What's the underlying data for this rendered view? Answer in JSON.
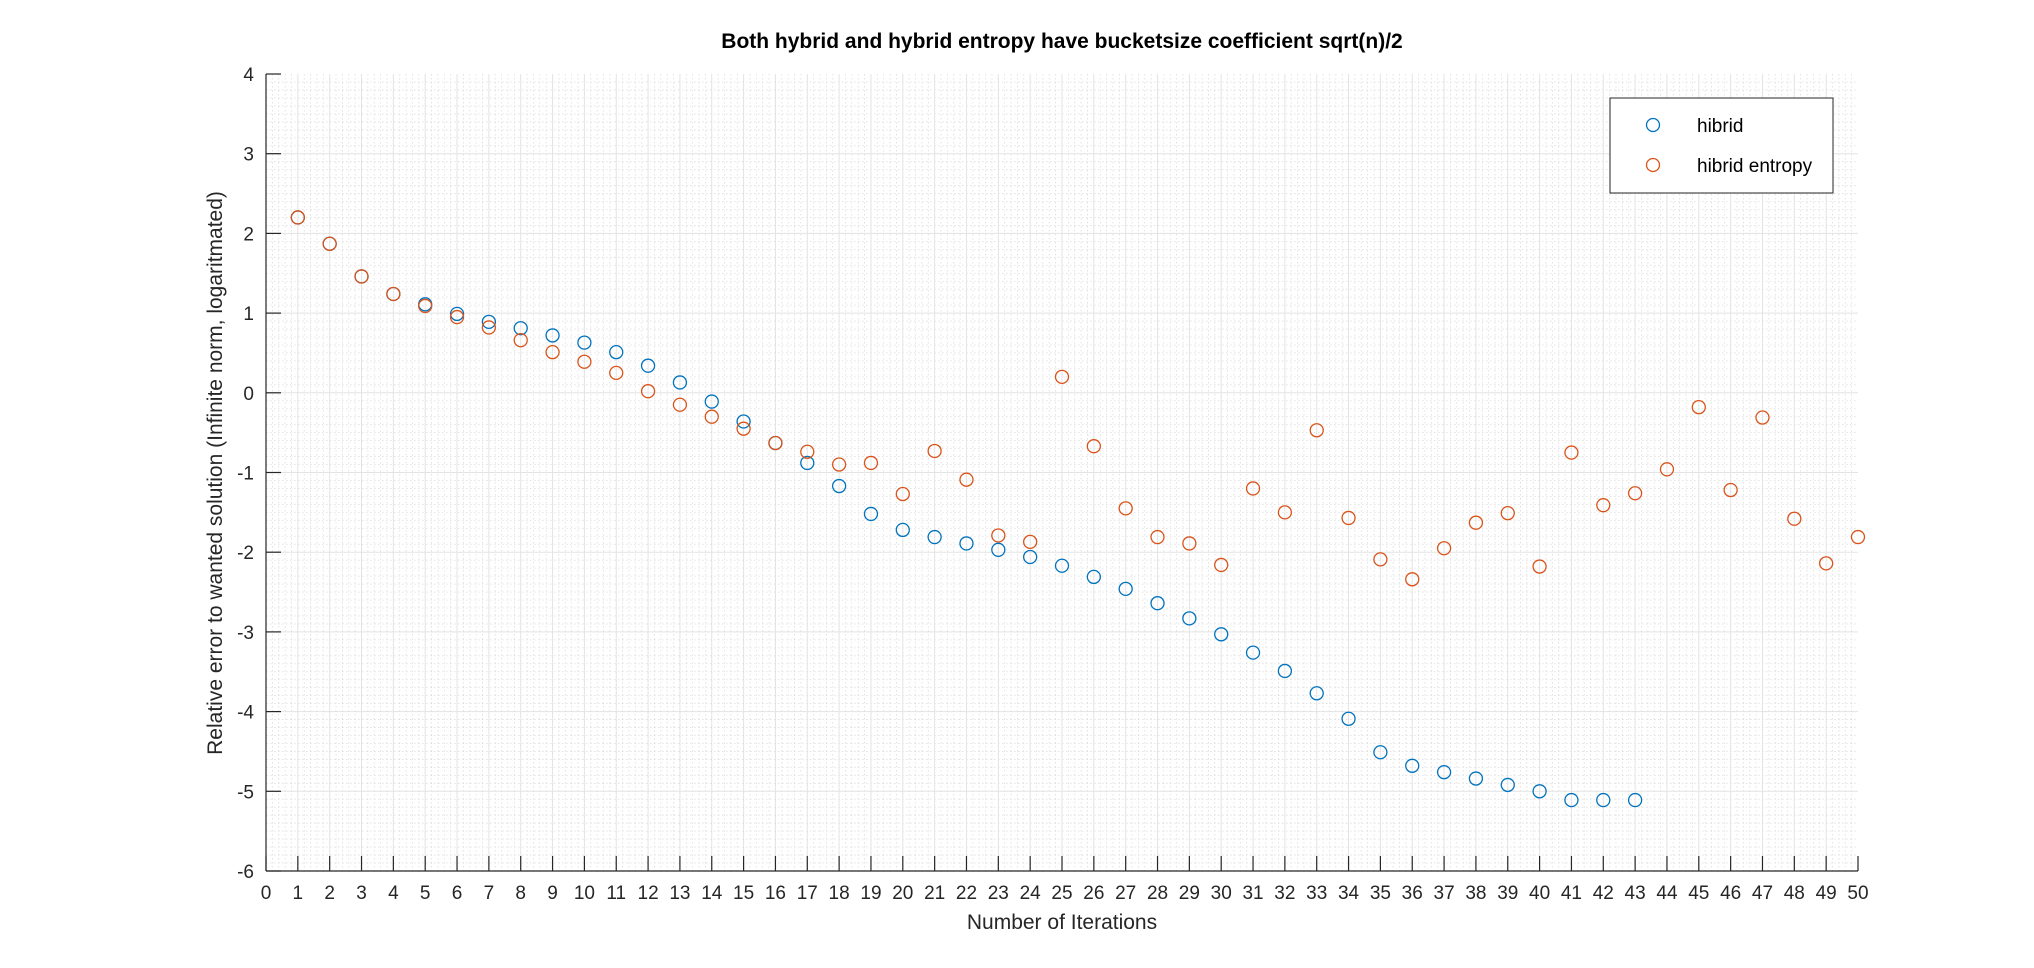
{
  "chart_data": {
    "type": "scatter",
    "title": "Both hybrid and hybrid entropy have bucketsize coefficient sqrt(n)/2",
    "xlabel": "Number of Iterations",
    "ylabel": "Relative error to wanted solution (Infinite norm, logaritmated)",
    "xlim": [
      0,
      50
    ],
    "ylim": [
      -6,
      4
    ],
    "xticks": [
      "0",
      "1",
      "2",
      "3",
      "4",
      "5",
      "6",
      "7",
      "8",
      "9",
      "10",
      "11",
      "12",
      "13",
      "14",
      "15",
      "16",
      "17",
      "18",
      "19",
      "20",
      "21",
      "22",
      "23",
      "24",
      "25",
      "26",
      "27",
      "28",
      "29",
      "30",
      "31",
      "32",
      "33",
      "34",
      "35",
      "36",
      "37",
      "38",
      "39",
      "40",
      "41",
      "42",
      "43",
      "44",
      "45",
      "46",
      "47",
      "48",
      "49",
      "50"
    ],
    "yticks": [
      "4",
      "3",
      "2",
      "1",
      "0",
      "-1",
      "-2",
      "-3",
      "-4",
      "-5",
      "-6"
    ],
    "grid": true,
    "minor_grid": true,
    "legend_position": "top-right",
    "series": [
      {
        "name": "hibrid",
        "color": "#0072BD",
        "x": [
          1,
          2,
          3,
          4,
          5,
          6,
          7,
          8,
          9,
          10,
          11,
          12,
          13,
          14,
          15,
          16,
          17,
          18,
          19,
          20,
          21,
          22,
          23,
          24,
          25,
          26,
          27,
          28,
          29,
          30,
          31,
          32,
          33,
          34,
          35,
          36,
          37,
          38,
          39,
          40,
          41,
          42,
          43
        ],
        "y": [
          2.2,
          1.87,
          1.46,
          1.24,
          1.11,
          0.99,
          0.89,
          0.81,
          0.72,
          0.63,
          0.51,
          0.34,
          0.13,
          -0.11,
          -0.36,
          -0.63,
          -0.88,
          -1.17,
          -1.52,
          -1.72,
          -1.81,
          -1.89,
          -1.97,
          -2.06,
          -2.17,
          -2.31,
          -2.46,
          -2.64,
          -2.83,
          -3.03,
          -3.26,
          -3.49,
          -3.77,
          -4.09,
          -4.51,
          -4.68,
          -4.76,
          -4.84,
          -4.92,
          -5.0,
          -5.11,
          -5.11,
          -5.11
        ]
      },
      {
        "name": "hibrid entropy",
        "color": "#D95319",
        "x": [
          1,
          2,
          3,
          4,
          5,
          6,
          7,
          8,
          9,
          10,
          11,
          12,
          13,
          14,
          15,
          16,
          17,
          18,
          19,
          20,
          21,
          22,
          23,
          24,
          25,
          26,
          27,
          28,
          29,
          30,
          31,
          32,
          33,
          34,
          35,
          36,
          37,
          38,
          39,
          40,
          41,
          42,
          43,
          44,
          45,
          46,
          47,
          48,
          49,
          50
        ],
        "y": [
          2.2,
          1.87,
          1.46,
          1.24,
          1.09,
          0.95,
          0.82,
          0.66,
          0.51,
          0.39,
          0.25,
          0.02,
          -0.15,
          -0.3,
          -0.45,
          -0.63,
          -0.74,
          -0.9,
          -0.88,
          -1.27,
          -0.73,
          -1.09,
          -1.79,
          -1.87,
          0.2,
          -0.67,
          -1.45,
          -1.81,
          -1.89,
          -2.16,
          -1.2,
          -1.5,
          -0.47,
          -1.57,
          -2.09,
          -2.34,
          -1.95,
          -1.63,
          -1.51,
          -2.18,
          -0.75,
          -1.41,
          -1.26,
          -0.96,
          -0.18,
          -1.22,
          -0.31,
          -1.58,
          -2.14,
          -1.81
        ]
      }
    ]
  }
}
